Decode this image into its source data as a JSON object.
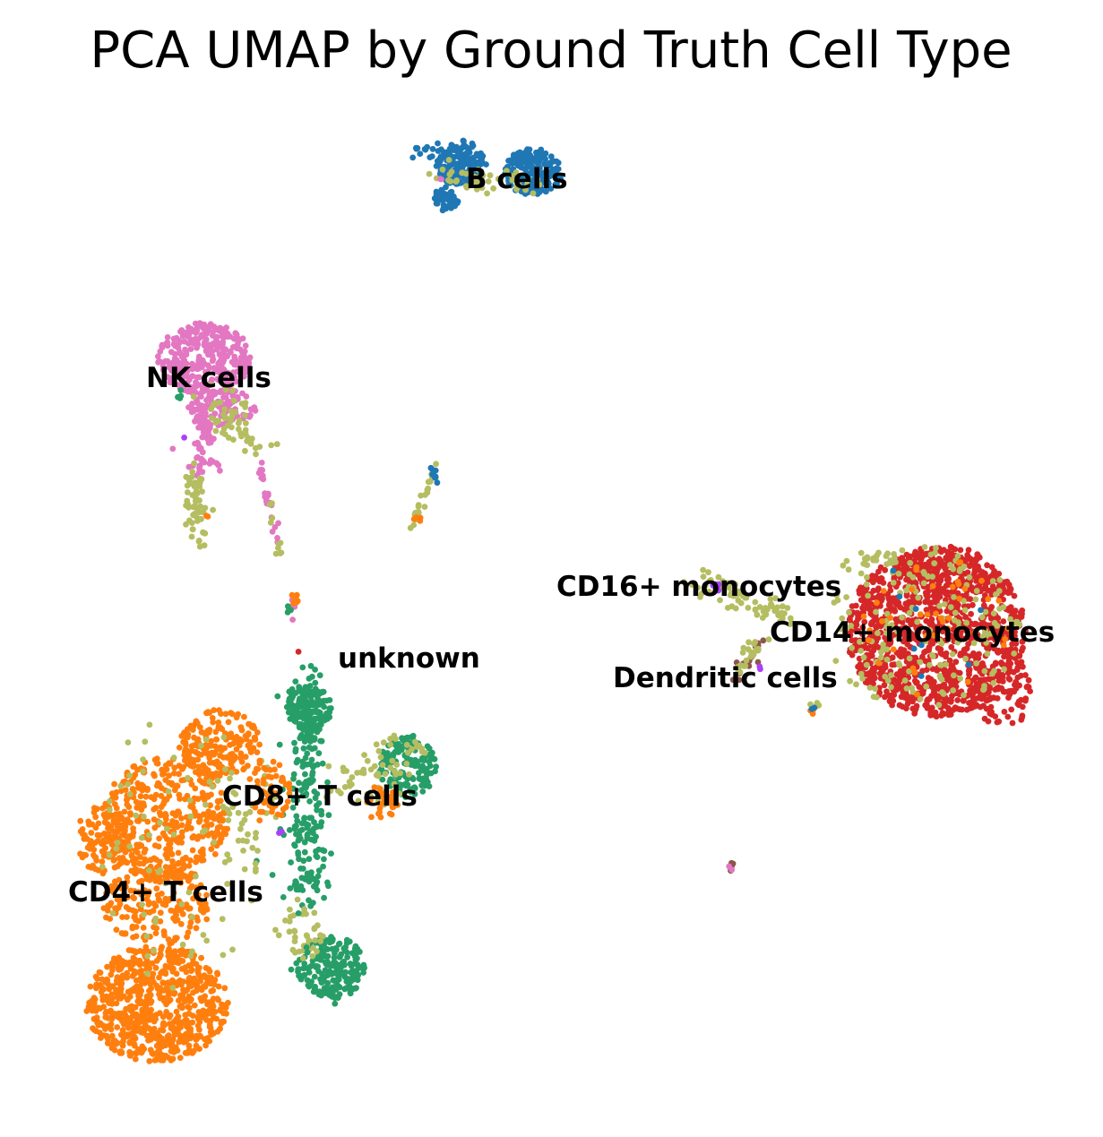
{
  "chart_data": {
    "type": "scatter",
    "title": "PCA UMAP by Ground Truth Cell Type",
    "xlabel": "",
    "ylabel": "",
    "grid": false,
    "axes_visible": false,
    "legend": "on data",
    "series": [
      {
        "name": "B cells",
        "color": "#1f77b4"
      },
      {
        "name": "CD4+ T cells",
        "color": "#ff7f0e"
      },
      {
        "name": "CD8+ T cells",
        "color": "#279e68"
      },
      {
        "name": "CD14+ monocytes",
        "color": "#d62728"
      },
      {
        "name": "CD16+ monocytes",
        "color": "#aa40fc"
      },
      {
        "name": "Dendritic cells",
        "color": "#8c564b"
      },
      {
        "name": "NK cells",
        "color": "#e377c2"
      },
      {
        "name": "unknown",
        "color": "#b5bd61"
      }
    ],
    "labels": [
      {
        "text": "B cells",
        "series": "B cells"
      },
      {
        "text": "NK cells",
        "series": "NK cells"
      },
      {
        "text": "CD16+ monocytes",
        "series": "CD16+ monocytes"
      },
      {
        "text": "CD14+ monocytes",
        "series": "CD14+ monocytes"
      },
      {
        "text": "unknown",
        "series": "unknown"
      },
      {
        "text": "Dendritic cells",
        "series": "Dendritic cells"
      },
      {
        "text": "CD8+ T cells",
        "series": "CD8+ T cells"
      },
      {
        "text": "CD4+ T cells",
        "series": "CD4+ T cells"
      }
    ]
  }
}
